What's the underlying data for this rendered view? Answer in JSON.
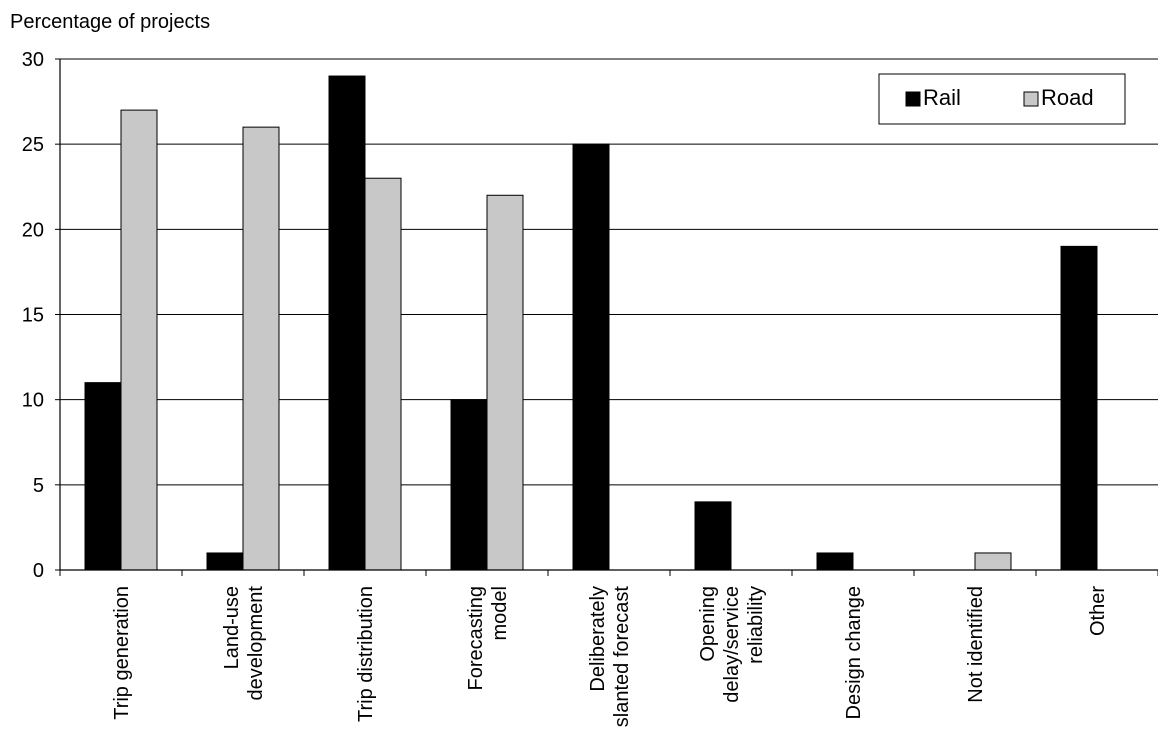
{
  "chart_data": {
    "type": "bar",
    "title": "",
    "ylabel": "Percentage of projects",
    "xlabel": "",
    "ylim": [
      0,
      30
    ],
    "yticks": [
      0,
      5,
      10,
      15,
      20,
      25,
      30
    ],
    "grid": true,
    "legend_position": "top-right",
    "categories": [
      [
        "Trip generation"
      ],
      [
        "Land-use",
        "development"
      ],
      [
        "Trip distribution"
      ],
      [
        "Forecasting",
        "model"
      ],
      [
        "Deliberately",
        "slanted forecast"
      ],
      [
        "Opening",
        "delay/service",
        "reliability"
      ],
      [
        "Design  change"
      ],
      [
        "Not identified"
      ],
      [
        "Other"
      ]
    ],
    "series": [
      {
        "name": "Rail",
        "color": "#000000",
        "values": [
          11,
          1,
          29,
          10,
          25,
          4,
          1,
          0,
          19
        ]
      },
      {
        "name": "Road",
        "color": "#c8c8c8",
        "values": [
          27,
          26,
          23,
          22,
          0,
          0,
          0,
          1,
          0
        ]
      }
    ]
  }
}
